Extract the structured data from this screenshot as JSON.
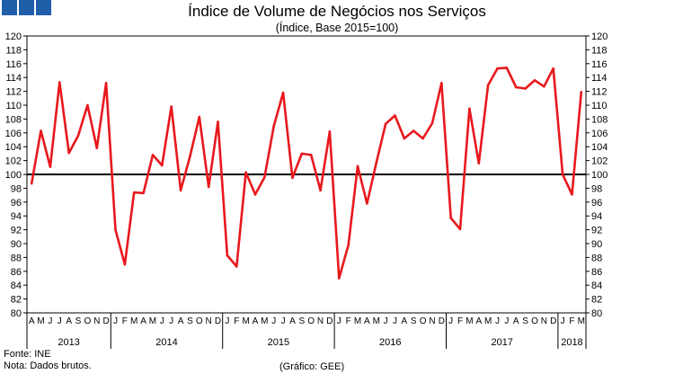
{
  "chart_data": {
    "type": "line",
    "title": "Índice de Volume de Negócios nos Serviços",
    "subtitle": "(Índice, Base 2015=100)",
    "ylim": [
      80,
      120
    ],
    "yticks": [
      80,
      82,
      84,
      86,
      88,
      90,
      92,
      94,
      96,
      98,
      100,
      102,
      104,
      106,
      108,
      110,
      112,
      114,
      116,
      118,
      120
    ],
    "reference_line": 100,
    "months": [
      "A",
      "M",
      "J",
      "J",
      "A",
      "S",
      "O",
      "N",
      "D",
      "J",
      "F",
      "M",
      "A",
      "M",
      "J",
      "J",
      "A",
      "S",
      "O",
      "N",
      "D",
      "J",
      "F",
      "M",
      "A",
      "M",
      "J",
      "J",
      "A",
      "S",
      "O",
      "N",
      "D",
      "J",
      "F",
      "M",
      "A",
      "M",
      "J",
      "J",
      "A",
      "S",
      "O",
      "N",
      "D",
      "J",
      "F",
      "M",
      "A",
      "M",
      "J",
      "J",
      "A",
      "S",
      "O",
      "N",
      "D",
      "J",
      "F",
      "M"
    ],
    "years": [
      {
        "label": "2013",
        "months": 9
      },
      {
        "label": "2014",
        "months": 12
      },
      {
        "label": "2015",
        "months": 12
      },
      {
        "label": "2016",
        "months": 12
      },
      {
        "label": "2017",
        "months": 12
      },
      {
        "label": "2018",
        "months": 3
      }
    ],
    "series": [
      {
        "name": "Índice de Volume de Negócios nos Serviços",
        "color": "#e8181d",
        "values": [
          98.7,
          106.3,
          101.1,
          113.3,
          103.1,
          105.6,
          110.0,
          103.8,
          113.2,
          92.0,
          87.0,
          97.4,
          97.3,
          102.8,
          101.3,
          109.8,
          97.7,
          102.6,
          108.3,
          98.2,
          107.6,
          88.3,
          86.7,
          100.3,
          97.1,
          99.6,
          107.0,
          111.8,
          99.5,
          103.0,
          102.8,
          97.7,
          106.2,
          85.0,
          89.8,
          101.2,
          95.8,
          101.7,
          107.3,
          108.5,
          105.2,
          106.3,
          105.2,
          107.4,
          113.2,
          93.7,
          92.1,
          109.5,
          101.6,
          112.9,
          115.3,
          115.4,
          112.6,
          112.4,
          113.6,
          112.7,
          115.3,
          100.0,
          97.1,
          111.9
        ]
      }
    ]
  },
  "footer": {
    "source": "Fonte: INE",
    "note": "Nota: Dados brutos.",
    "credit": "(Gráfico: GEE)"
  }
}
